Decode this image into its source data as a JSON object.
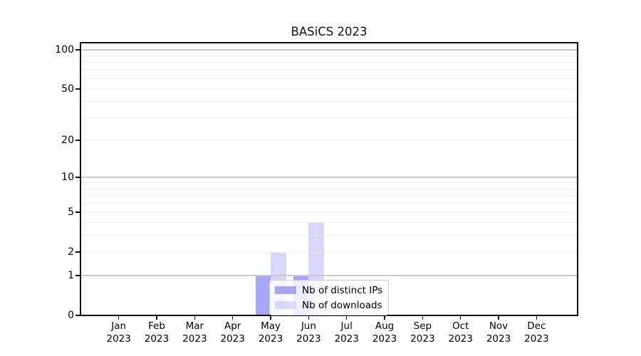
{
  "title": "BASiCS 2023",
  "chart_data": {
    "type": "bar",
    "title": "BASiCS 2023",
    "categories": [
      "Jan",
      "Feb",
      "Mar",
      "Apr",
      "May",
      "Jun",
      "Jul",
      "Aug",
      "Sep",
      "Oct",
      "Nov",
      "Dec"
    ],
    "x_tick_year": "2023",
    "series": [
      {
        "name": "Nb of distinct IPs",
        "fill": "rgba(132,132,237,0.72)",
        "legend_color": "#a6a6f2",
        "values": [
          0,
          0,
          0,
          0,
          1,
          1,
          0,
          0,
          0,
          0,
          0,
          0
        ]
      },
      {
        "name": "Nb of downloads",
        "fill": "rgba(190,190,247,0.60)",
        "legend_color": "#d8d8fa",
        "values": [
          0,
          0,
          0,
          0,
          2,
          4,
          0,
          0,
          0,
          0,
          0,
          0
        ]
      }
    ],
    "y_scale": "log1p",
    "ylim": [
      0,
      113.3
    ],
    "y_ticks": [
      0,
      1,
      2,
      5,
      10,
      20,
      50,
      100
    ],
    "grid": {
      "major_values": [
        1,
        10,
        100
      ],
      "minor_values": [
        2,
        3,
        4,
        5,
        6,
        7,
        8,
        9,
        20,
        30,
        40,
        50,
        60,
        70,
        80,
        90
      ],
      "major_color": "#c9c9c9",
      "minor_color": "#ededed"
    },
    "legend_position": "lower center",
    "axis_color": "#0f0f0f"
  }
}
